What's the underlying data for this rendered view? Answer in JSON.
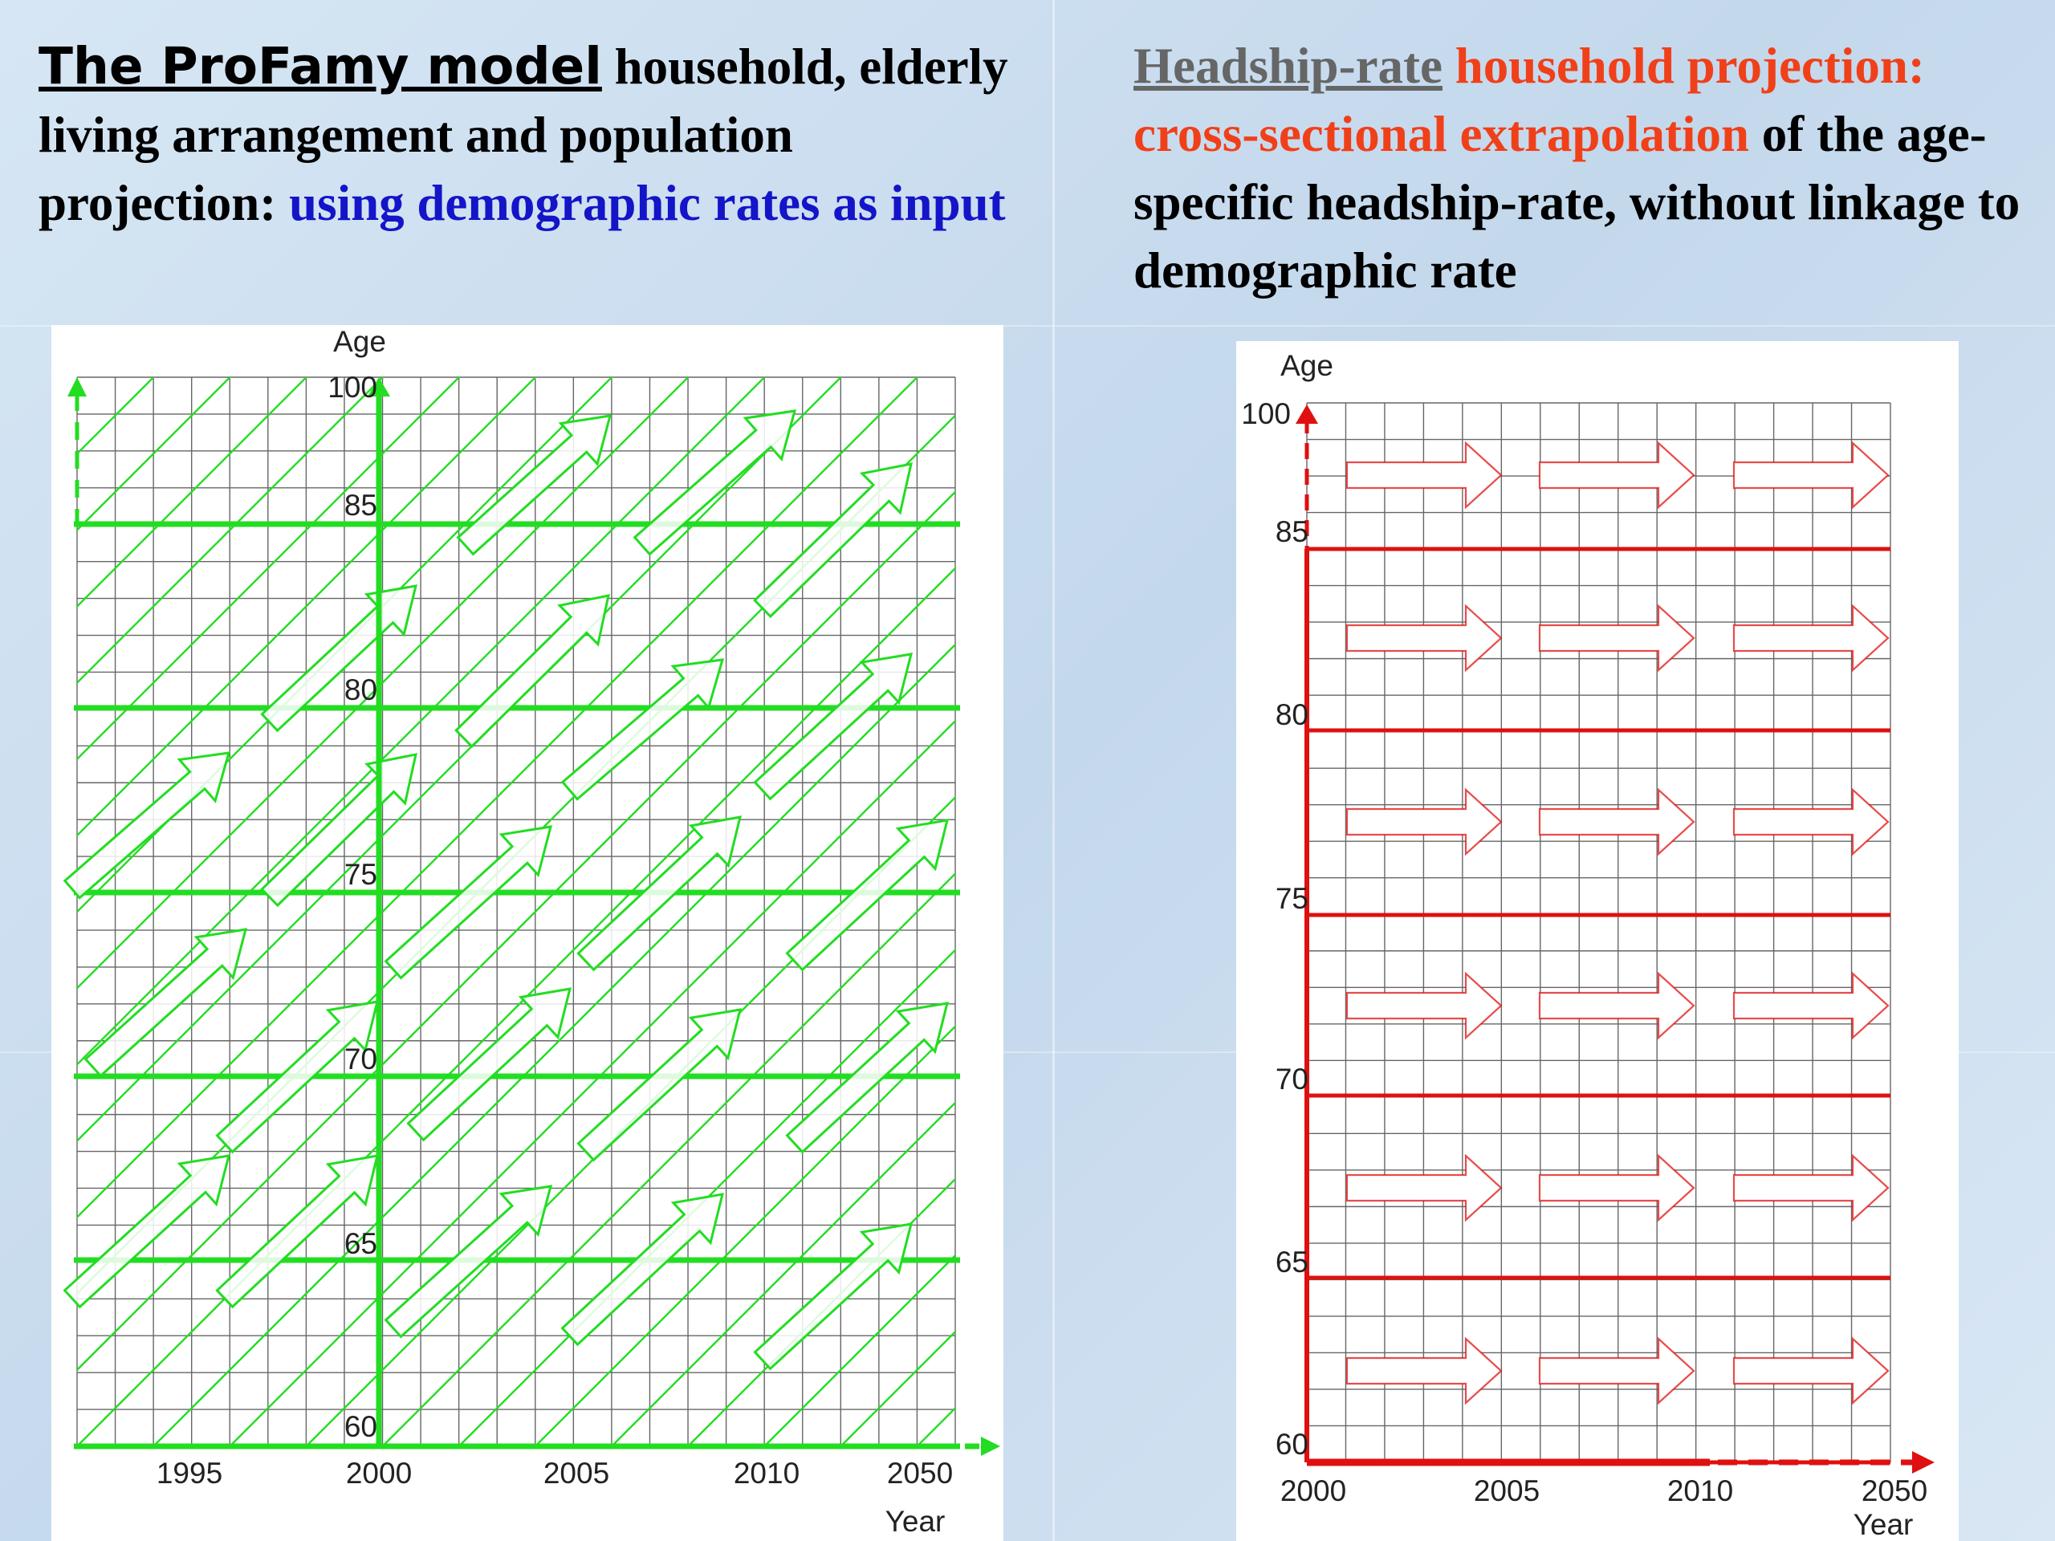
{
  "left_heading": {
    "part1": "The ProFamy model",
    "part2": " household, elderly living arrangement and population projection: ",
    "part3": "using demographic rates as input"
  },
  "right_heading": {
    "part1": "Headship-rate",
    "part2": " household projection: ",
    "part3": "cross-sectional extrapolation",
    "part4": " of the age-specific headship-rate, without linkage to demographic rate"
  },
  "left_chart": {
    "y_label": "Age",
    "x_label": "Year",
    "y_ticks": [
      "100",
      "85",
      "80",
      "75",
      "70",
      "65",
      "60"
    ],
    "x_ticks": [
      "1995",
      "2000",
      "2005",
      "2010",
      "2050"
    ],
    "color": "#22dd22"
  },
  "right_chart": {
    "y_label": "Age",
    "x_label": "Year",
    "y_ticks": [
      "100",
      "85",
      "80",
      "75",
      "70",
      "65",
      "60"
    ],
    "x_ticks": [
      "2000",
      "2005",
      "2010",
      "2050"
    ],
    "color": "#e01010"
  }
}
